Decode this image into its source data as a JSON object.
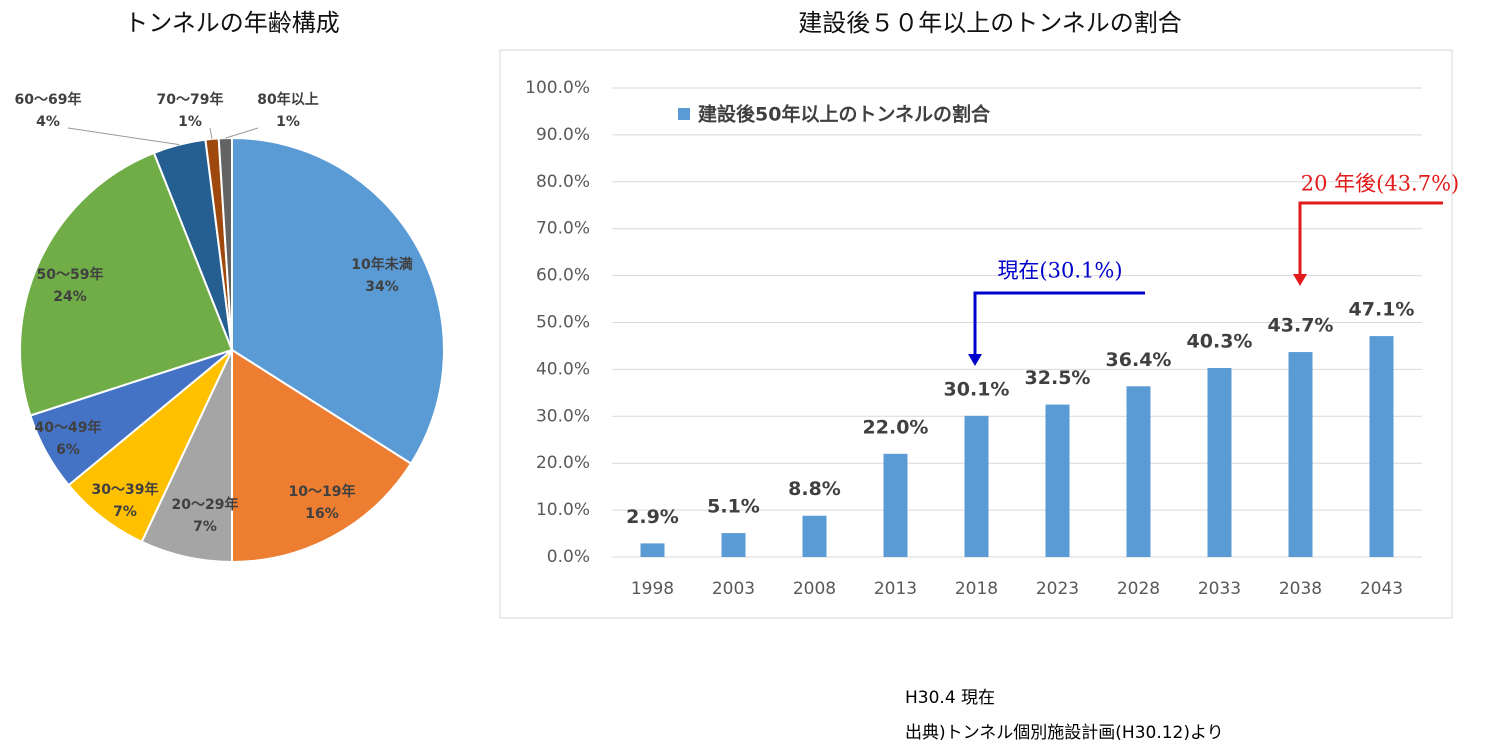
{
  "chart_data": [
    {
      "type": "pie",
      "title": "トンネルの年齢構成",
      "categories": [
        "10年未満",
        "10～19年",
        "20～29年",
        "30～39年",
        "40～49年",
        "50～59年",
        "60～69年",
        "70～79年",
        "80年以上"
      ],
      "values": [
        34,
        16,
        7,
        7,
        6,
        24,
        4,
        1,
        1
      ],
      "value_labels": [
        "34%",
        "16%",
        "7%",
        "7%",
        "6%",
        "24%",
        "4%",
        "1%",
        "1%"
      ],
      "colors": [
        "#5b9bd5",
        "#ed7d31",
        "#a5a5a5",
        "#ffc000",
        "#4472c4",
        "#70ad47",
        "#255e91",
        "#9e480e",
        "#636363"
      ]
    },
    {
      "type": "bar",
      "title": "建設後５０年以上のトンネルの割合",
      "categories": [
        "1998",
        "2003",
        "2008",
        "2013",
        "2018",
        "2023",
        "2028",
        "2033",
        "2038",
        "2043"
      ],
      "series": [
        {
          "name": "建設後50年以上のトンネルの割合",
          "color": "#5b9bd5",
          "values": [
            2.9,
            5.1,
            8.8,
            22.0,
            30.1,
            32.5,
            36.4,
            40.3,
            43.7,
            47.1
          ],
          "value_labels": [
            "2.9%",
            "5.1%",
            "8.8%",
            "22.0%",
            "30.1%",
            "32.5%",
            "36.4%",
            "40.3%",
            "43.7%",
            "47.1%"
          ]
        }
      ],
      "ylim": [
        0,
        100
      ],
      "yticks": [
        {
          "value": 0,
          "label": "0.0%"
        },
        {
          "value": 10,
          "label": "10.0%"
        },
        {
          "value": 20,
          "label": "20.0%"
        },
        {
          "value": 30,
          "label": "30.0%"
        },
        {
          "value": 40,
          "label": "40.0%"
        },
        {
          "value": 50,
          "label": "50.0%"
        },
        {
          "value": 60,
          "label": "60.0%"
        },
        {
          "value": 70,
          "label": "70.0%"
        },
        {
          "value": 80,
          "label": "80.0%"
        },
        {
          "value": 90,
          "label": "90.0%"
        },
        {
          "value": 100,
          "label": "100.0%"
        }
      ],
      "grid": true,
      "legend": "top-left",
      "annotations": [
        {
          "text": "現在(30.1%)",
          "color": "#0000cc"
        },
        {
          "text": "20 年後(43.7%)",
          "color": "#e31a1a"
        }
      ]
    }
  ],
  "notes": [
    "H30.4 現在",
    "出典)トンネル個別施設計画(H30.12)より"
  ]
}
